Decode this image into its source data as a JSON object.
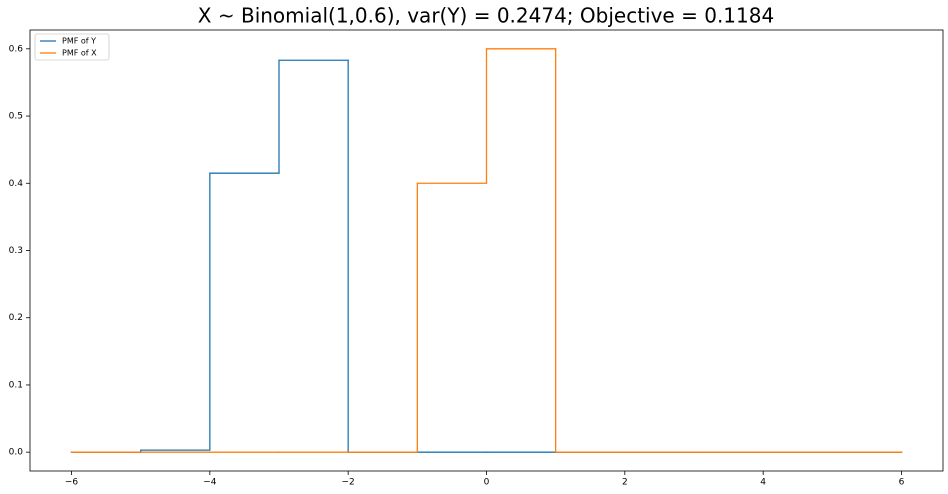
{
  "chart_data": {
    "type": "step",
    "drawstyle": "steps-post",
    "title": "X ~ Binomial(1,0.6), var(Y) = 0.2474; Objective = 0.1184",
    "x": [
      -6,
      -5,
      -4,
      -3,
      -2,
      -1,
      0,
      1,
      2,
      3,
      4,
      5,
      6
    ],
    "series": [
      {
        "name": "PMF of Y",
        "color": "#1f77b4",
        "values": [
          0,
          0.003,
          0.415,
          0.583,
          0,
          0,
          0,
          0,
          0,
          0,
          0,
          0,
          0
        ]
      },
      {
        "name": "PMF of X",
        "color": "#ff7f0e",
        "values": [
          0,
          0,
          0,
          0,
          0,
          0.4,
          0.6,
          0,
          0,
          0,
          0,
          0,
          0
        ]
      }
    ],
    "xlim": [
      -6.6,
      6.6
    ],
    "xticks": [
      {
        "value": -6,
        "label": "−6"
      },
      {
        "value": -4,
        "label": "−4"
      },
      {
        "value": -2,
        "label": "−2"
      },
      0,
      2,
      4,
      6
    ],
    "ylim": [
      -0.028,
      0.628
    ],
    "yticks": [
      {
        "value": 0,
        "label": "0.0"
      },
      0.1,
      0.2,
      0.3,
      0.4,
      0.5,
      0.6
    ],
    "grid": false,
    "legend": "upper left"
  }
}
